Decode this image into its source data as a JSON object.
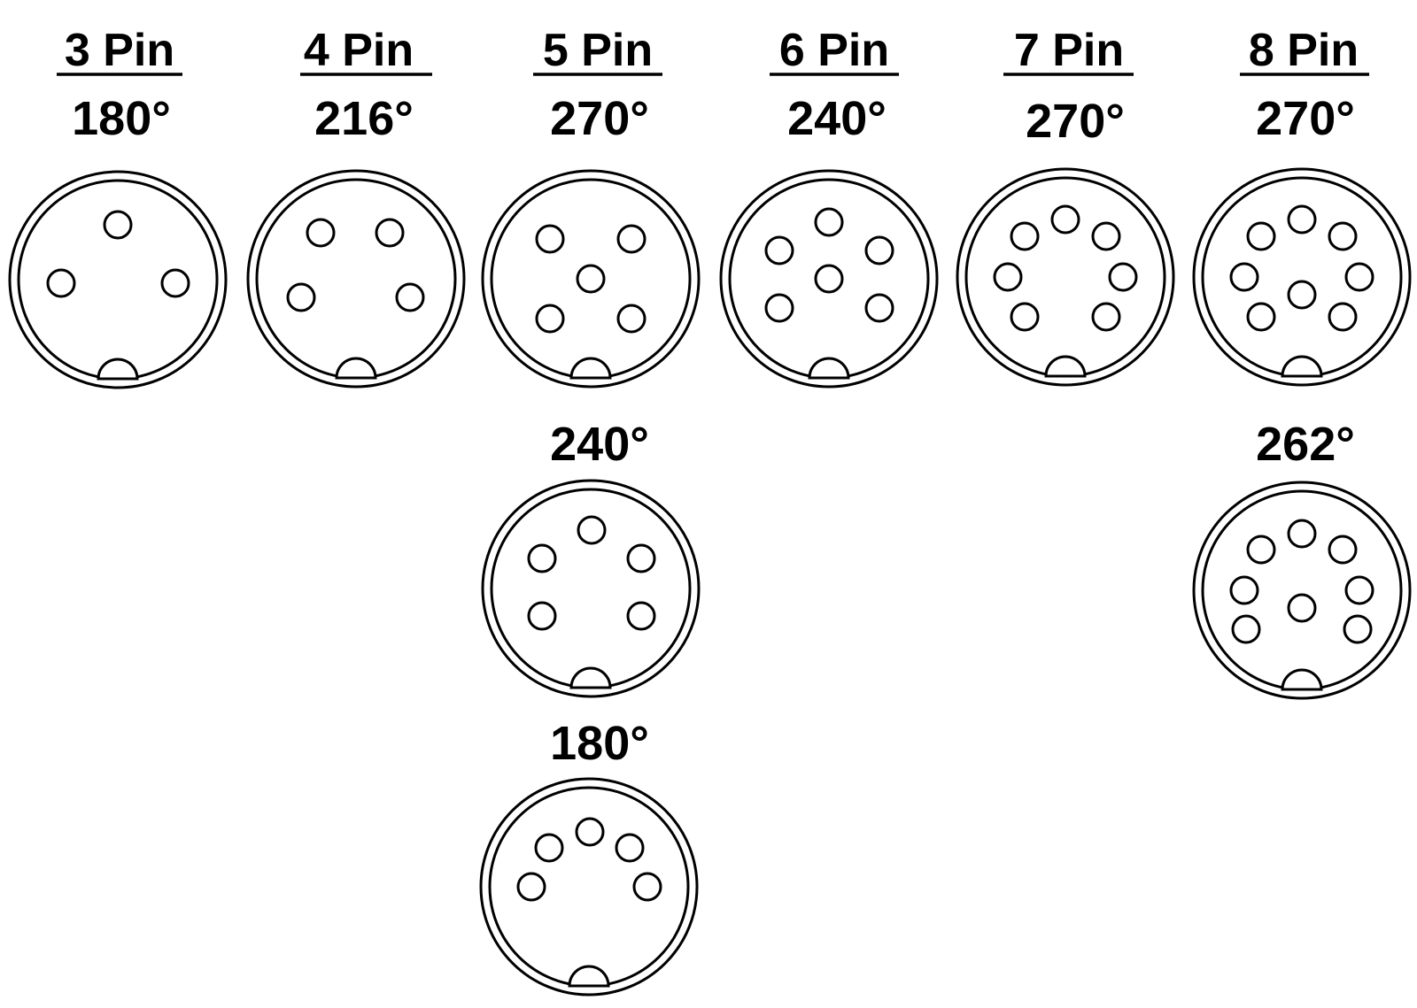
{
  "columns": [
    {
      "id": "3",
      "header": "3 Pin",
      "variants": [
        {
          "angle": "180°"
        }
      ]
    },
    {
      "id": "4",
      "header": "4 Pin",
      "variants": [
        {
          "angle": "216°"
        }
      ]
    },
    {
      "id": "5",
      "header": "5 Pin",
      "variants": [
        {
          "angle": "270°"
        },
        {
          "angle": "240°"
        },
        {
          "angle": "180°"
        }
      ]
    },
    {
      "id": "6",
      "header": "6 Pin",
      "variants": [
        {
          "angle": "240°"
        }
      ]
    },
    {
      "id": "7",
      "header": "7 Pin",
      "variants": [
        {
          "angle": "270°"
        }
      ]
    },
    {
      "id": "8",
      "header": "8 Pin",
      "variants": [
        {
          "angle": "270°"
        },
        {
          "angle": "262°"
        }
      ]
    }
  ]
}
